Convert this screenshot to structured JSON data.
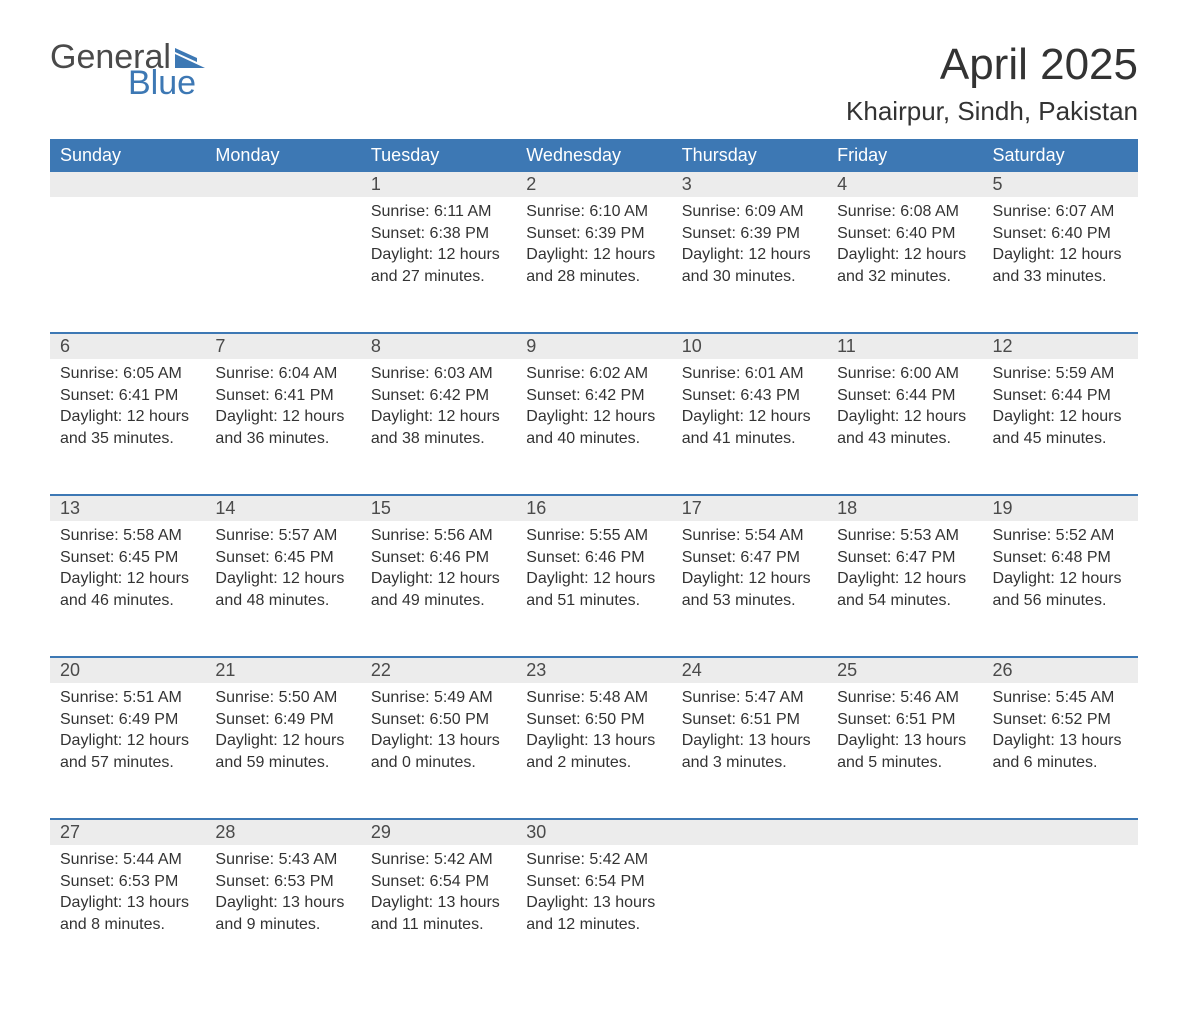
{
  "logo": {
    "word1": "General",
    "word2": "Blue",
    "flag_color": "#3d78b4"
  },
  "title": {
    "month": "April 2025",
    "location": "Khairpur, Sindh, Pakistan"
  },
  "colors": {
    "header_bg": "#3d78b4",
    "header_text": "#ffffff",
    "daynum_bg": "#ececec",
    "row_divider": "#3d78b4",
    "body_text": "#333333"
  },
  "day_headers": [
    "Sunday",
    "Monday",
    "Tuesday",
    "Wednesday",
    "Thursday",
    "Friday",
    "Saturday"
  ],
  "weeks": [
    [
      null,
      null,
      {
        "n": "1",
        "sunrise": "6:11 AM",
        "sunset": "6:38 PM",
        "dl_h": "12",
        "dl_m": "27"
      },
      {
        "n": "2",
        "sunrise": "6:10 AM",
        "sunset": "6:39 PM",
        "dl_h": "12",
        "dl_m": "28"
      },
      {
        "n": "3",
        "sunrise": "6:09 AM",
        "sunset": "6:39 PM",
        "dl_h": "12",
        "dl_m": "30"
      },
      {
        "n": "4",
        "sunrise": "6:08 AM",
        "sunset": "6:40 PM",
        "dl_h": "12",
        "dl_m": "32"
      },
      {
        "n": "5",
        "sunrise": "6:07 AM",
        "sunset": "6:40 PM",
        "dl_h": "12",
        "dl_m": "33"
      }
    ],
    [
      {
        "n": "6",
        "sunrise": "6:05 AM",
        "sunset": "6:41 PM",
        "dl_h": "12",
        "dl_m": "35"
      },
      {
        "n": "7",
        "sunrise": "6:04 AM",
        "sunset": "6:41 PM",
        "dl_h": "12",
        "dl_m": "36"
      },
      {
        "n": "8",
        "sunrise": "6:03 AM",
        "sunset": "6:42 PM",
        "dl_h": "12",
        "dl_m": "38"
      },
      {
        "n": "9",
        "sunrise": "6:02 AM",
        "sunset": "6:42 PM",
        "dl_h": "12",
        "dl_m": "40"
      },
      {
        "n": "10",
        "sunrise": "6:01 AM",
        "sunset": "6:43 PM",
        "dl_h": "12",
        "dl_m": "41"
      },
      {
        "n": "11",
        "sunrise": "6:00 AM",
        "sunset": "6:44 PM",
        "dl_h": "12",
        "dl_m": "43"
      },
      {
        "n": "12",
        "sunrise": "5:59 AM",
        "sunset": "6:44 PM",
        "dl_h": "12",
        "dl_m": "45"
      }
    ],
    [
      {
        "n": "13",
        "sunrise": "5:58 AM",
        "sunset": "6:45 PM",
        "dl_h": "12",
        "dl_m": "46"
      },
      {
        "n": "14",
        "sunrise": "5:57 AM",
        "sunset": "6:45 PM",
        "dl_h": "12",
        "dl_m": "48"
      },
      {
        "n": "15",
        "sunrise": "5:56 AM",
        "sunset": "6:46 PM",
        "dl_h": "12",
        "dl_m": "49"
      },
      {
        "n": "16",
        "sunrise": "5:55 AM",
        "sunset": "6:46 PM",
        "dl_h": "12",
        "dl_m": "51"
      },
      {
        "n": "17",
        "sunrise": "5:54 AM",
        "sunset": "6:47 PM",
        "dl_h": "12",
        "dl_m": "53"
      },
      {
        "n": "18",
        "sunrise": "5:53 AM",
        "sunset": "6:47 PM",
        "dl_h": "12",
        "dl_m": "54"
      },
      {
        "n": "19",
        "sunrise": "5:52 AM",
        "sunset": "6:48 PM",
        "dl_h": "12",
        "dl_m": "56"
      }
    ],
    [
      {
        "n": "20",
        "sunrise": "5:51 AM",
        "sunset": "6:49 PM",
        "dl_h": "12",
        "dl_m": "57"
      },
      {
        "n": "21",
        "sunrise": "5:50 AM",
        "sunset": "6:49 PM",
        "dl_h": "12",
        "dl_m": "59"
      },
      {
        "n": "22",
        "sunrise": "5:49 AM",
        "sunset": "6:50 PM",
        "dl_h": "13",
        "dl_m": "0"
      },
      {
        "n": "23",
        "sunrise": "5:48 AM",
        "sunset": "6:50 PM",
        "dl_h": "13",
        "dl_m": "2"
      },
      {
        "n": "24",
        "sunrise": "5:47 AM",
        "sunset": "6:51 PM",
        "dl_h": "13",
        "dl_m": "3"
      },
      {
        "n": "25",
        "sunrise": "5:46 AM",
        "sunset": "6:51 PM",
        "dl_h": "13",
        "dl_m": "5"
      },
      {
        "n": "26",
        "sunrise": "5:45 AM",
        "sunset": "6:52 PM",
        "dl_h": "13",
        "dl_m": "6"
      }
    ],
    [
      {
        "n": "27",
        "sunrise": "5:44 AM",
        "sunset": "6:53 PM",
        "dl_h": "13",
        "dl_m": "8"
      },
      {
        "n": "28",
        "sunrise": "5:43 AM",
        "sunset": "6:53 PM",
        "dl_h": "13",
        "dl_m": "9"
      },
      {
        "n": "29",
        "sunrise": "5:42 AM",
        "sunset": "6:54 PM",
        "dl_h": "13",
        "dl_m": "11"
      },
      {
        "n": "30",
        "sunrise": "5:42 AM",
        "sunset": "6:54 PM",
        "dl_h": "13",
        "dl_m": "12"
      },
      null,
      null,
      null
    ]
  ],
  "labels": {
    "sunrise": "Sunrise: ",
    "sunset": "Sunset: ",
    "daylight_prefix": "Daylight: ",
    "hours_word": " hours",
    "and_word": "and ",
    "minutes_word": " minutes."
  }
}
